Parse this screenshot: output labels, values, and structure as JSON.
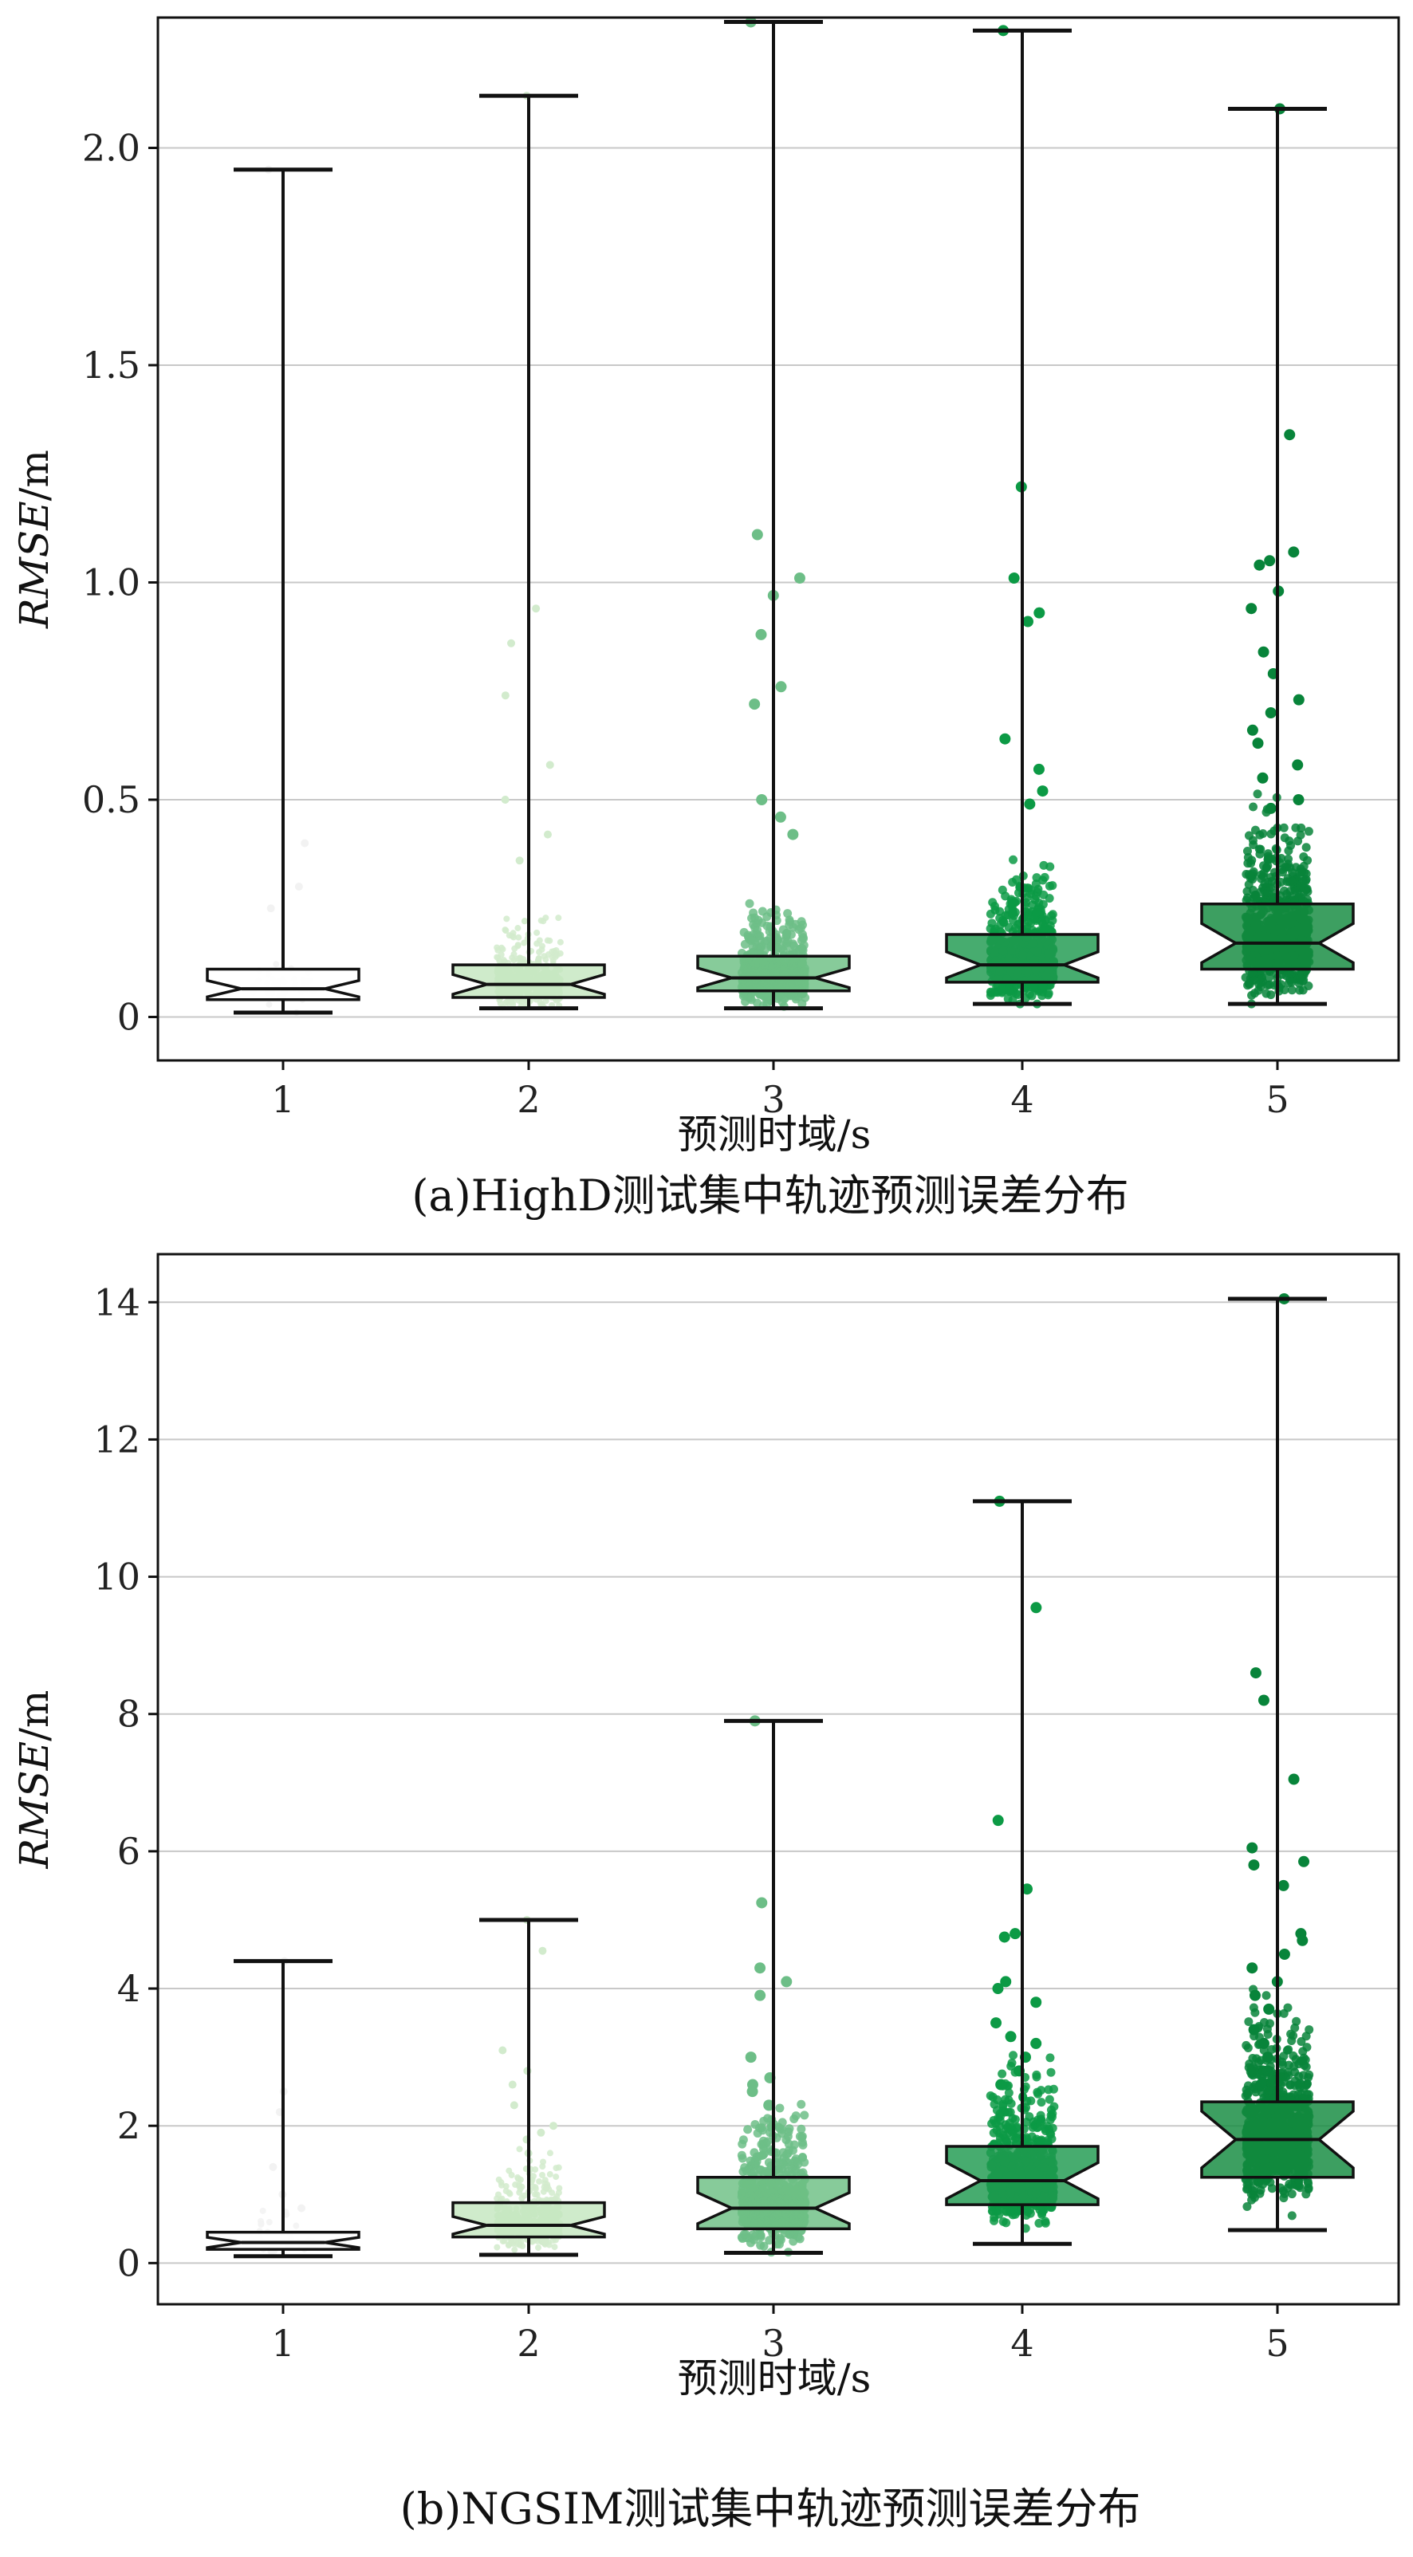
{
  "chart_data": [
    {
      "type": "box",
      "caption": "(a)HighD测试集中轨迹预测误差分布",
      "xlabel": "预测时域/s",
      "ylabel_main": "RMSE",
      "ylabel_unit": "/m",
      "categories": [
        "1",
        "2",
        "3",
        "4",
        "5"
      ],
      "ylim": [
        -0.1,
        2.3
      ],
      "yticks": [
        0,
        0.5,
        1.0,
        1.5,
        2.0
      ],
      "ytick_labels": [
        "0",
        "0.5",
        "1.0",
        "1.5",
        "2.0"
      ],
      "grid": true,
      "box_colors": [
        "#ffffff",
        "#c4e6c0",
        "#6cbf84",
        "#1f9a4f",
        "#128a3e"
      ],
      "point_colors": [
        "#f2f2f2",
        "#d2ebcd",
        "#6dbe87",
        "#0c9a45",
        "#08843a"
      ],
      "boxes": [
        {
          "whisker_low": 0.01,
          "q1": 0.04,
          "median": 0.065,
          "q3": 0.11,
          "whisker_high": 1.95
        },
        {
          "whisker_low": 0.02,
          "q1": 0.045,
          "median": 0.075,
          "q3": 0.12,
          "whisker_high": 2.12
        },
        {
          "whisker_low": 0.02,
          "q1": 0.06,
          "median": 0.09,
          "q3": 0.14,
          "whisker_high": 2.29
        },
        {
          "whisker_low": 0.03,
          "q1": 0.08,
          "median": 0.12,
          "q3": 0.19,
          "whisker_high": 2.27
        },
        {
          "whisker_low": 0.03,
          "q1": 0.11,
          "median": 0.17,
          "q3": 0.26,
          "whisker_high": 2.09
        }
      ],
      "outliers": [
        [
          1.95,
          0.4,
          0.3,
          0.25
        ],
        [
          2.12,
          0.94,
          0.86,
          0.74,
          0.58,
          0.5,
          0.42,
          0.36
        ],
        [
          2.29,
          1.11,
          1.01,
          0.97,
          0.88,
          0.76,
          0.72,
          0.5,
          0.46,
          0.42
        ],
        [
          2.27,
          1.22,
          1.01,
          0.93,
          0.91,
          0.64,
          0.57,
          0.52,
          0.49
        ],
        [
          2.09,
          1.34,
          1.07,
          1.05,
          1.04,
          0.98,
          0.94,
          0.84,
          0.79,
          0.73,
          0.7,
          0.66,
          0.63,
          0.58,
          0.55,
          0.5,
          0.48
        ]
      ]
    },
    {
      "type": "box",
      "caption": "(b)NGSIM测试集中轨迹预测误差分布",
      "xlabel": "预测时域/s",
      "ylabel_main": "RMSE",
      "ylabel_unit": "/m",
      "categories": [
        "1",
        "2",
        "3",
        "4",
        "5"
      ],
      "ylim": [
        -0.6,
        14.7
      ],
      "yticks": [
        0,
        2,
        4,
        6,
        8,
        10,
        12,
        14
      ],
      "ytick_labels": [
        "0",
        "2",
        "4",
        "6",
        "8",
        "10",
        "12",
        "14"
      ],
      "grid": true,
      "box_colors": [
        "#ffffff",
        "#c4e6c0",
        "#6cbf84",
        "#1f9a4f",
        "#128a3e"
      ],
      "point_colors": [
        "#f2f2f2",
        "#d2ebcd",
        "#6dbe87",
        "#0c9a45",
        "#08843a"
      ],
      "boxes": [
        {
          "whisker_low": 0.1,
          "q1": 0.2,
          "median": 0.3,
          "q3": 0.45,
          "whisker_high": 4.4
        },
        {
          "whisker_low": 0.12,
          "q1": 0.38,
          "median": 0.55,
          "q3": 0.88,
          "whisker_high": 5.0
        },
        {
          "whisker_low": 0.15,
          "q1": 0.5,
          "median": 0.8,
          "q3": 1.25,
          "whisker_high": 7.9
        },
        {
          "whisker_low": 0.28,
          "q1": 0.85,
          "median": 1.2,
          "q3": 1.7,
          "whisker_high": 11.1
        },
        {
          "whisker_low": 0.48,
          "q1": 1.25,
          "median": 1.8,
          "q3": 2.35,
          "whisker_high": 14.05
        }
      ],
      "outliers": [
        [
          4.4,
          2.5,
          2.2,
          1.4,
          1.0,
          0.8
        ],
        [
          5.0,
          4.55,
          3.1,
          2.8,
          2.6,
          2.3,
          2.0,
          1.9,
          1.8,
          1.6
        ],
        [
          7.9,
          5.25,
          4.3,
          4.1,
          3.9,
          3.0,
          2.7,
          2.6,
          2.5,
          2.3
        ],
        [
          11.1,
          9.55,
          6.45,
          5.45,
          4.8,
          4.75,
          4.1,
          4.0,
          3.8,
          3.5,
          3.3,
          3.2,
          3.0,
          2.8,
          2.6
        ],
        [
          14.05,
          8.6,
          8.2,
          7.05,
          6.05,
          5.85,
          5.8,
          5.5,
          4.8,
          4.7,
          4.5,
          4.3,
          4.1,
          3.9,
          3.7,
          3.4,
          3.2,
          3.0,
          2.8,
          2.6
        ]
      ]
    }
  ]
}
